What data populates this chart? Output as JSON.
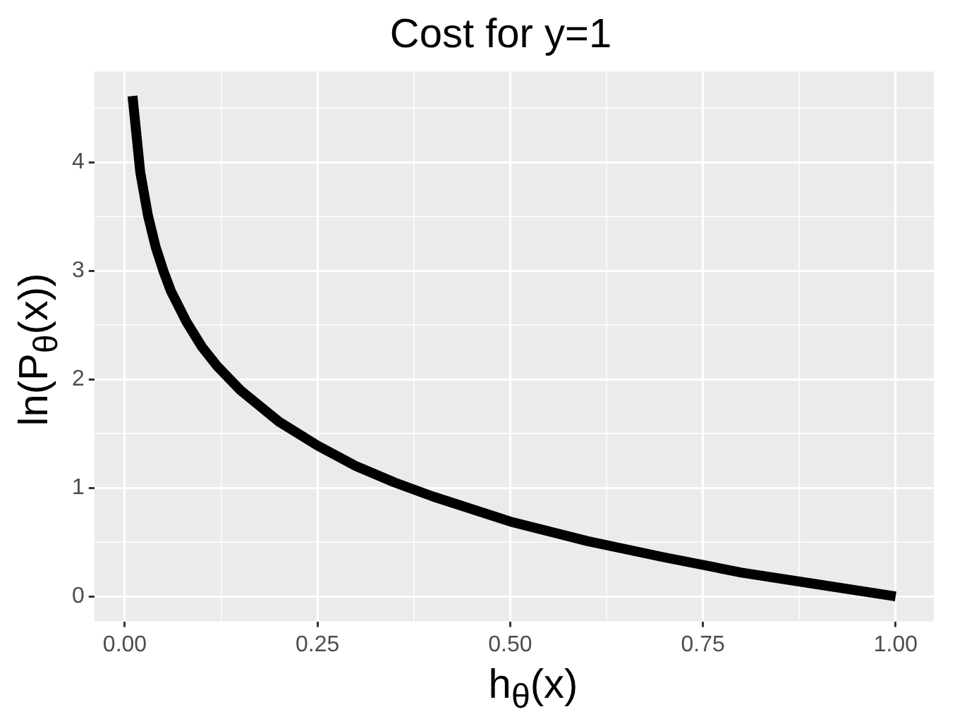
{
  "chart_data": {
    "type": "line",
    "title": "Cost for y=1",
    "xlabel": "h$_{θ}$(x)",
    "ylabel": "ln(P$_{θ}$(x))",
    "x": [
      0.01,
      0.02,
      0.03,
      0.04,
      0.05,
      0.06,
      0.08,
      0.1,
      0.12,
      0.15,
      0.2,
      0.25,
      0.3,
      0.35,
      0.4,
      0.5,
      0.6,
      0.7,
      0.8,
      0.9,
      1.0
    ],
    "series": [
      {
        "color": "#000000",
        "values": [
          4.61,
          3.91,
          3.51,
          3.22,
          3.0,
          2.81,
          2.53,
          2.3,
          2.12,
          1.9,
          1.61,
          1.39,
          1.2,
          1.05,
          0.92,
          0.69,
          0.51,
          0.36,
          0.22,
          0.11,
          0
        ]
      }
    ],
    "xlim": [
      -0.0395,
      1.0495
    ],
    "ylim": [
      -0.23,
      4.835
    ],
    "xticks": [
      {
        "value": 0,
        "label": "0.00"
      },
      {
        "value": 0.125,
        "label": null
      },
      {
        "value": 0.25,
        "label": "0.25"
      },
      {
        "value": 0.375,
        "label": null
      },
      {
        "value": 0.5,
        "label": "0.50"
      },
      {
        "value": 0.625,
        "label": null
      },
      {
        "value": 0.75,
        "label": "0.75"
      },
      {
        "value": 0.875,
        "label": null
      },
      {
        "value": 1,
        "label": "1.00"
      }
    ],
    "yticks": [
      0,
      {
        "value": 0.5,
        "label": null
      },
      1,
      {
        "value": 1.5,
        "label": null
      },
      2,
      {
        "value": 2.5,
        "label": null
      },
      3,
      {
        "value": 3.5,
        "label": null
      },
      4,
      {
        "value": 4.5,
        "label": null
      }
    ],
    "grid": true,
    "legend": false,
    "marker": "none",
    "line_style": "solid"
  }
}
